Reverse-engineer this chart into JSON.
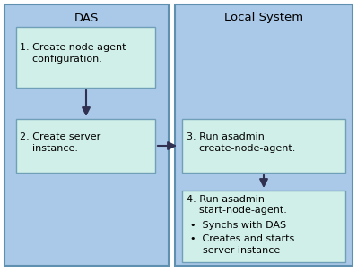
{
  "fig_bg": "#ffffff",
  "outer_bg": "#aac8e8",
  "inner_box_bg": "#d0efe8",
  "inner_box_border": "#70a0b8",
  "outer_box_border": "#6090b0",
  "das_label": "DAS",
  "local_label": "Local System",
  "box1_text": "1. Create node agent\n    configuration.",
  "box2_text": "2. Create server\n    instance.",
  "box3_text": "3. Run asadmin\n    create-node-agent.",
  "box4_line1": "4. Run asadmin",
  "box4_line2": "    start-node-agent.",
  "box4_bullet1": "•  Synchs with DAS",
  "box4_bullet2": "•  Creates and starts\n    server instance",
  "arrow_color": "#303050",
  "font_size": 8.0,
  "label_font_size": 9.5
}
